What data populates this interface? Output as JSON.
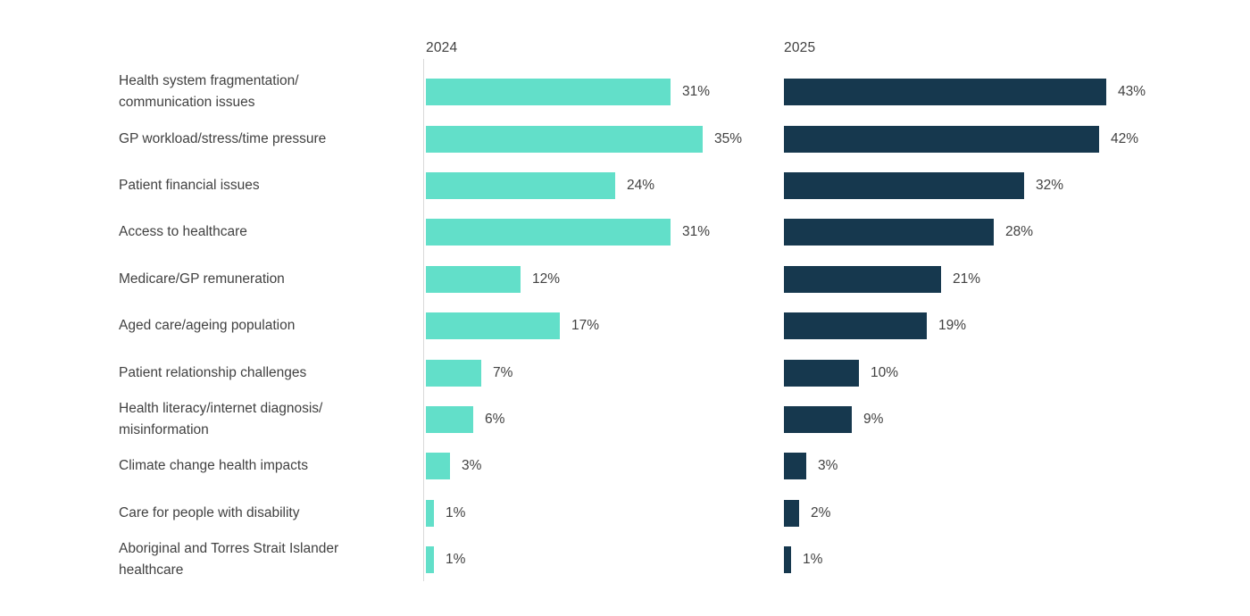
{
  "chart_data": {
    "type": "bar",
    "orientation": "horizontal",
    "value_suffix": "%",
    "categories": [
      "Health system fragmentation/\ncommunication issues",
      "GP workload/stress/time pressure",
      "Patient financial issues",
      "Access to healthcare",
      "Medicare/GP remuneration",
      "Aged care/ageing population",
      "Patient relationship challenges",
      "Health literacy/internet diagnosis/\nmisinformation",
      "Climate change health impacts",
      "Care for people with disability",
      "Aboriginal and Torres Strait Islander\nhealthcare"
    ],
    "series": [
      {
        "name": "2024",
        "color": "#62dfc9",
        "values": [
          31,
          35,
          24,
          31,
          12,
          17,
          7,
          6,
          3,
          1,
          1
        ]
      },
      {
        "name": "2025",
        "color": "#16384e",
        "values": [
          43,
          42,
          32,
          28,
          21,
          19,
          10,
          9,
          3,
          2,
          1
        ]
      }
    ],
    "xlim": [
      0,
      45
    ],
    "grid": false,
    "legend_position": "column-headers-top",
    "axis_line_color": "#d9d9d9",
    "text_color": "#414141"
  }
}
